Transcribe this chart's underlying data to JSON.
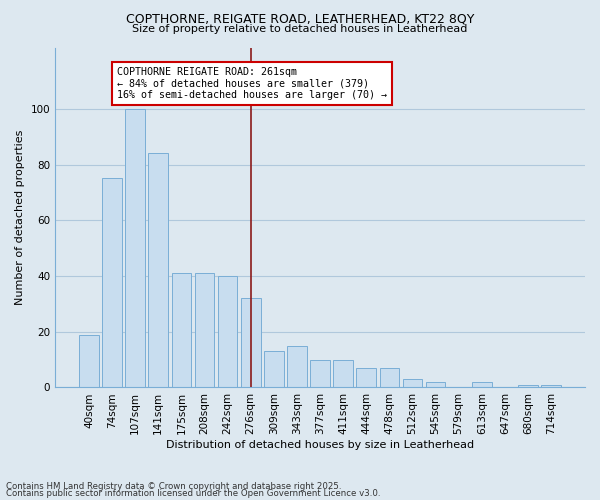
{
  "title1": "COPTHORNE, REIGATE ROAD, LEATHERHEAD, KT22 8QY",
  "title2": "Size of property relative to detached houses in Leatherhead",
  "xlabel": "Distribution of detached houses by size in Leatherhead",
  "ylabel": "Number of detached properties",
  "categories": [
    "40sqm",
    "74sqm",
    "107sqm",
    "141sqm",
    "175sqm",
    "208sqm",
    "242sqm",
    "276sqm",
    "309sqm",
    "343sqm",
    "377sqm",
    "411sqm",
    "444sqm",
    "478sqm",
    "512sqm",
    "545sqm",
    "579sqm",
    "613sqm",
    "647sqm",
    "680sqm",
    "714sqm"
  ],
  "values": [
    19,
    75,
    100,
    84,
    41,
    41,
    40,
    32,
    13,
    15,
    10,
    10,
    7,
    7,
    3,
    2,
    0,
    2,
    0,
    1,
    1
  ],
  "bar_color": "#c8ddef",
  "bar_edge_color": "#7aaed6",
  "vline_x": 7,
  "vline_color": "#8b1a1a",
  "annotation_text": "COPTHORNE REIGATE ROAD: 261sqm\n← 84% of detached houses are smaller (379)\n16% of semi-detached houses are larger (70) →",
  "annotation_box_color": "#ffffff",
  "annotation_box_edge": "#cc0000",
  "ylim": [
    0,
    122
  ],
  "yticks": [
    0,
    20,
    40,
    60,
    80,
    100
  ],
  "footer1": "Contains HM Land Registry data © Crown copyright and database right 2025.",
  "footer2": "Contains public sector information licensed under the Open Government Licence v3.0.",
  "bg_color": "#dde8f0",
  "plot_bg_color": "#dde8f0",
  "grid_color": "#b0c8dc"
}
